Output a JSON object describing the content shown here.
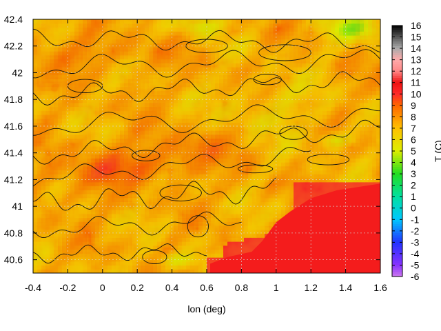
{
  "chart_data": {
    "type": "heatmap",
    "title": "",
    "xlabel": "lon (deg)",
    "ylabel": "",
    "colorbar_label": "T (C)",
    "xlim": [
      -0.4,
      1.6
    ],
    "ylim": [
      40.5,
      42.4
    ],
    "x_ticks": [
      "-0.4",
      "-0.2",
      "0",
      "0.2",
      "0.4",
      "0.6",
      "0.8",
      "1",
      "1.2",
      "1.4",
      "1.6"
    ],
    "y_ticks": [
      "40.6",
      "40.8",
      "41",
      "41.2",
      "41.4",
      "41.6",
      "41.8",
      "42",
      "42.2",
      "42.4"
    ],
    "color_range": [
      -6,
      16
    ],
    "colorbar_ticks": [
      "16",
      "15",
      "14",
      "13",
      "12",
      "11",
      "10",
      "9",
      "8",
      "7",
      "6",
      "5",
      "4",
      "3",
      "2",
      "1",
      "0",
      "-1",
      "-2",
      "-3",
      "-4",
      "-5",
      "-6"
    ],
    "grid": true,
    "contours": true,
    "sea_value": 10,
    "palette": [
      {
        "t": -6,
        "color": "#cc77ee"
      },
      {
        "t": -5,
        "color": "#8833ff"
      },
      {
        "t": -3,
        "color": "#2233ff"
      },
      {
        "t": -1,
        "color": "#00c8ff"
      },
      {
        "t": 1,
        "color": "#00e0a0"
      },
      {
        "t": 3,
        "color": "#22dd22"
      },
      {
        "t": 5,
        "color": "#ddee00"
      },
      {
        "t": 7,
        "color": "#ffc000"
      },
      {
        "t": 9,
        "color": "#ff6600"
      },
      {
        "t": 10,
        "color": "#ff2a2a"
      },
      {
        "t": 11,
        "color": "#ee1111"
      },
      {
        "t": 12,
        "color": "#ff8888"
      },
      {
        "t": 13,
        "color": "#ffaaaa"
      },
      {
        "t": 14,
        "color": "#aaaaaa"
      },
      {
        "t": 15,
        "color": "#555555"
      },
      {
        "t": 16,
        "color": "#000000"
      }
    ]
  }
}
